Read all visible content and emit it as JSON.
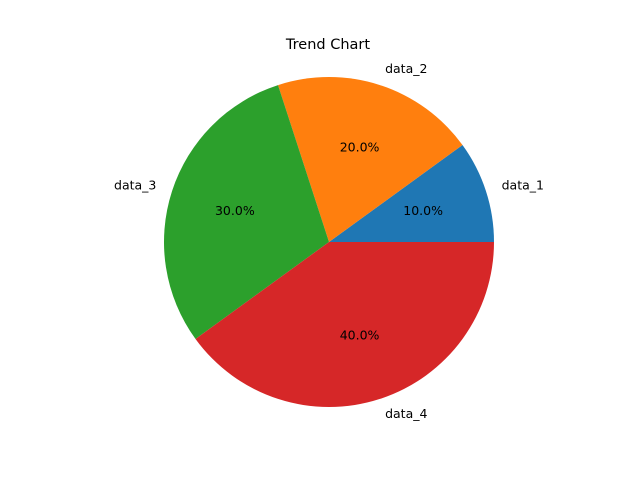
{
  "chart_data": {
    "type": "pie",
    "title": "Trend Chart",
    "labels": [
      "data_1",
      "data_2",
      "data_3",
      "data_4"
    ],
    "values": [
      10,
      20,
      30,
      40
    ],
    "percent_labels": [
      "10.0%",
      "20.0%",
      "30.0%",
      "40.0%"
    ],
    "colors": [
      "#1f77b4",
      "#ff7f0e",
      "#2ca02c",
      "#d62728"
    ],
    "start_angle": 0,
    "direction": "counterclockwise"
  }
}
